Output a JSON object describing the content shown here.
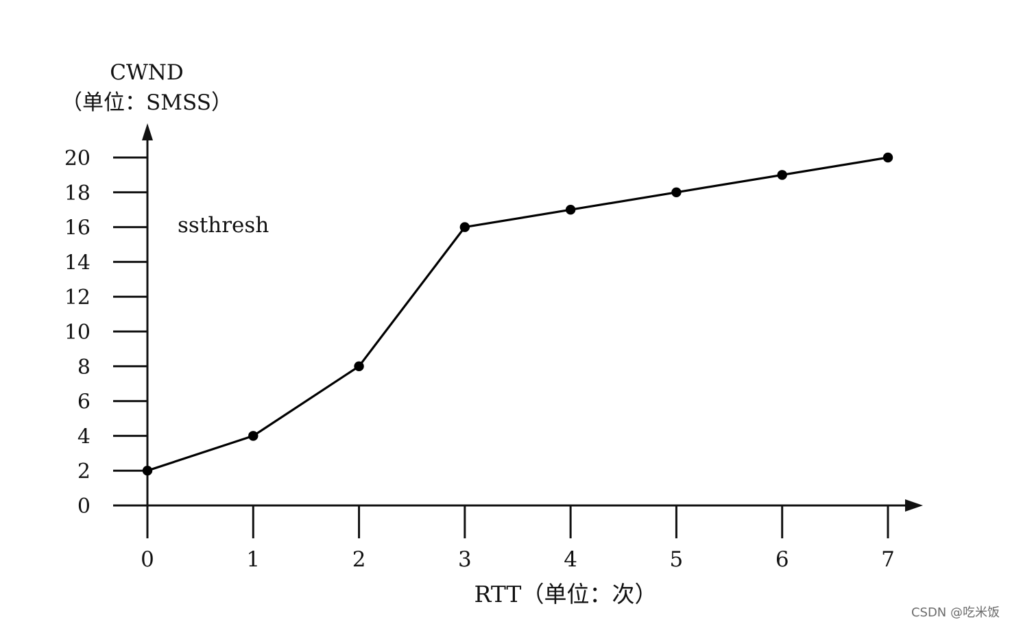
{
  "chart_data": {
    "type": "line",
    "ylabel_lines": [
      "CWND",
      "（单位：SMSS）"
    ],
    "xlabel": "RTT（单位：次）",
    "annotation": "ssthresh",
    "x": [
      0,
      1,
      2,
      3,
      4,
      5,
      6,
      7
    ],
    "y": [
      2,
      4,
      8,
      16,
      17,
      18,
      19,
      20
    ],
    "x_ticks": [
      0,
      1,
      2,
      3,
      4,
      5,
      6,
      7
    ],
    "x_tick_labels": [
      "0",
      "1",
      "2",
      "3",
      "4",
      "5",
      "6",
      "7"
    ],
    "y_ticks": [
      0,
      2,
      4,
      6,
      8,
      10,
      12,
      14,
      16,
      18,
      20
    ],
    "y_tick_labels": [
      "0",
      "2",
      "4",
      "6",
      "8",
      "10",
      "12",
      "14",
      "16",
      "18",
      "20"
    ],
    "xlim": [
      0,
      7
    ],
    "ylim": [
      0,
      20
    ],
    "grid": false,
    "line_color": "#000000",
    "marker": "circle"
  },
  "watermark": "CSDN @吃米饭"
}
